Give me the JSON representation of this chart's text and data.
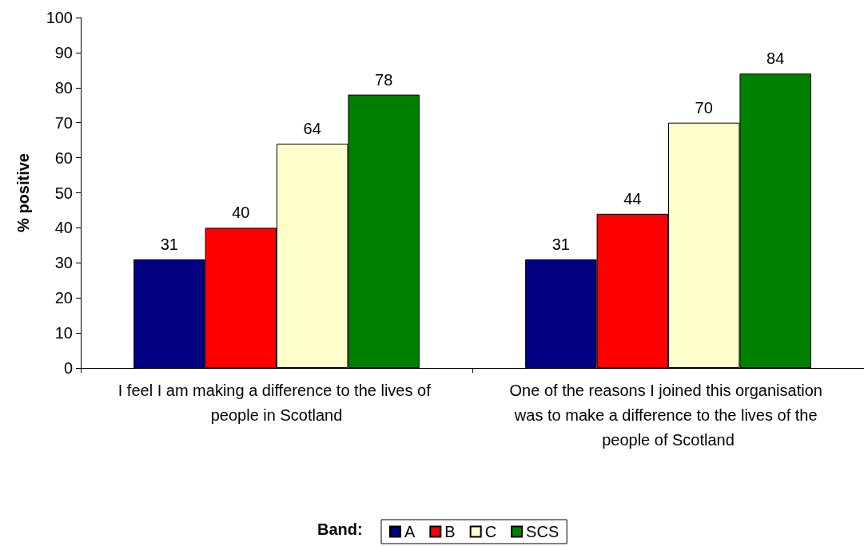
{
  "chart_data": {
    "type": "bar",
    "ylabel": "% positive",
    "legend_title": "Band:",
    "categories": [
      "I feel I am making a difference to the lives of people in Scotland",
      "One of the reasons I joined this organisation was to make a difference to the lives of the people of Scotland"
    ],
    "series": [
      {
        "name": "A",
        "color": "#000080",
        "values": [
          31,
          31
        ]
      },
      {
        "name": "B",
        "color": "#ff0000",
        "values": [
          40,
          44
        ]
      },
      {
        "name": "C",
        "color": "#ffffcc",
        "values": [
          64,
          70
        ]
      },
      {
        "name": "SCS",
        "color": "#008000",
        "values": [
          78,
          84
        ]
      }
    ],
    "ylim": [
      0,
      100
    ],
    "yticks": [
      0,
      10,
      20,
      30,
      40,
      50,
      60,
      70,
      80,
      90,
      100
    ],
    "data_labels": true,
    "grid": false,
    "legend": "bottom"
  }
}
